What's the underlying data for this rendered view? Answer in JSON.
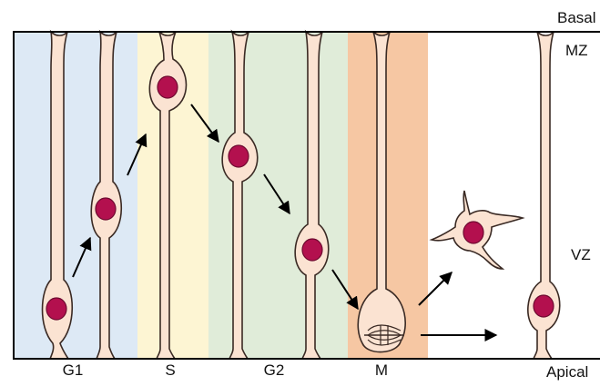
{
  "labels": {
    "basal": "Basal",
    "apical": "Apical",
    "mz": "MZ",
    "vz": "VZ"
  },
  "phases": [
    {
      "label": "G1",
      "color": "#dde9f5"
    },
    {
      "label": "S",
      "color": "#fdf5d3"
    },
    {
      "label": "G2",
      "color": "#e0ecd9"
    },
    {
      "label": "M",
      "color": "#f6c7a3"
    }
  ],
  "colors": {
    "cell_fill": "#fbe3d2",
    "cell_outline": "#3a2a24",
    "nucleus": "#b3104e",
    "border": "#000000"
  }
}
